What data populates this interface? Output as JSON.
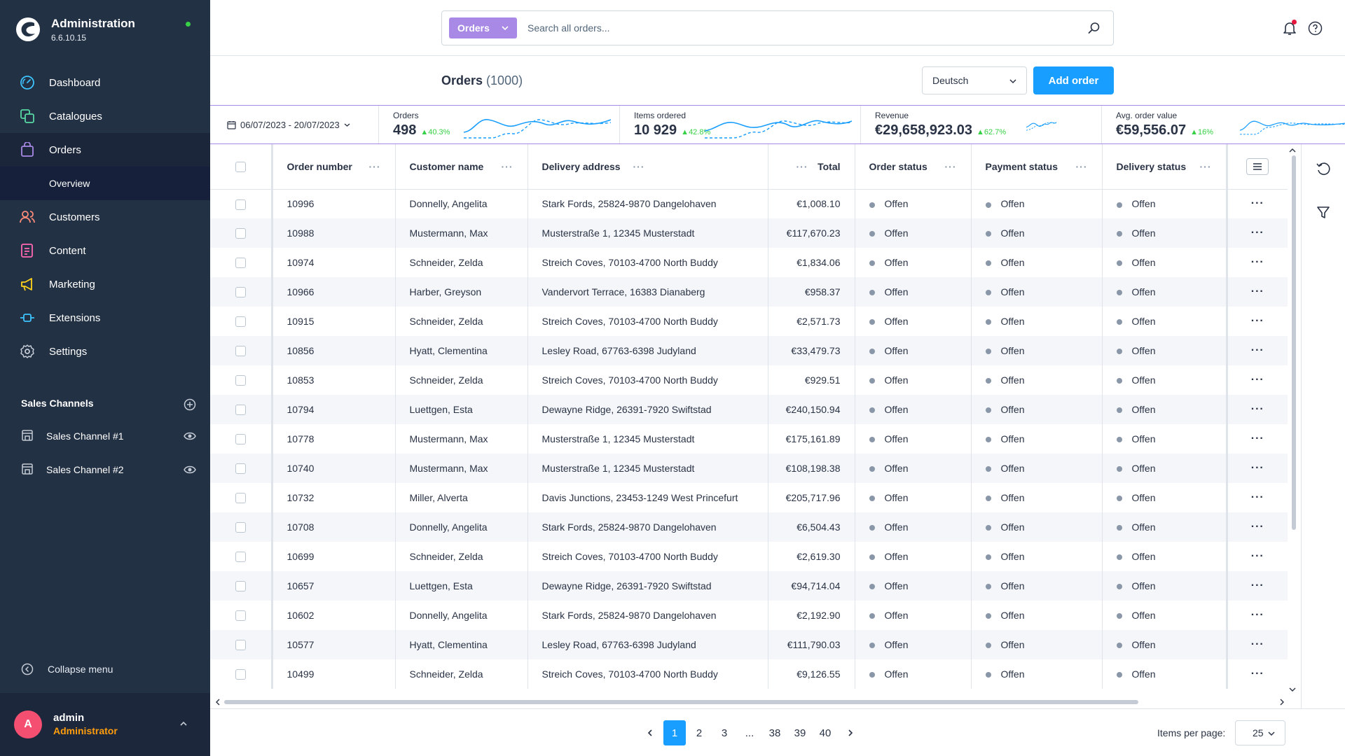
{
  "app": {
    "title": "Administration",
    "version": "6.6.10.15"
  },
  "sidebar": {
    "items": [
      {
        "label": "Dashboard",
        "icon": "dashboard-icon"
      },
      {
        "label": "Catalogues",
        "icon": "catalogue-icon"
      },
      {
        "label": "Orders",
        "icon": "orders-icon"
      },
      {
        "label": "Customers",
        "icon": "customers-icon"
      },
      {
        "label": "Content",
        "icon": "content-icon"
      },
      {
        "label": "Marketing",
        "icon": "marketing-icon"
      },
      {
        "label": "Extensions",
        "icon": "extensions-icon"
      },
      {
        "label": "Settings",
        "icon": "settings-icon"
      }
    ],
    "sub_item": "Overview",
    "sales_channels_title": "Sales Channels",
    "sales_channels": [
      "Sales Channel #1",
      "Sales Channel #2"
    ],
    "collapse_label": "Collapse menu",
    "user": {
      "initial": "A",
      "name": "admin",
      "role": "Administrator"
    }
  },
  "search": {
    "type_label": "Orders",
    "placeholder": "Search all orders..."
  },
  "page": {
    "title": "Orders",
    "count": "(1000)",
    "language": "Deutsch",
    "add_button": "Add order"
  },
  "kpis": {
    "date_range": "06/07/2023 - 20/07/2023",
    "cards": [
      {
        "label": "Orders",
        "value": "498",
        "trend": "40.3%"
      },
      {
        "label": "Items ordered",
        "value": "10 929",
        "trend": "42.8%"
      },
      {
        "label": "Revenue",
        "value": "€29,658,923.03",
        "trend": "62.7%"
      },
      {
        "label": "Avg. order value",
        "value": "€59,556.07",
        "trend": "16%"
      }
    ]
  },
  "table": {
    "columns": {
      "number": "Order number",
      "name": "Customer name",
      "address": "Delivery address",
      "total": "Total",
      "order_status": "Order status",
      "payment_status": "Payment status",
      "delivery_status": "Delivery status"
    },
    "rows": [
      {
        "number": "10996",
        "name": "Donnelly, Angelita",
        "address": "Stark Fords, 25824-9870 Dangelohaven",
        "total": "€1,008.10",
        "order_status": "Offen",
        "payment_status": "Offen",
        "delivery_status": "Offen"
      },
      {
        "number": "10988",
        "name": "Mustermann, Max",
        "address": "Musterstraße 1, 12345 Musterstadt",
        "total": "€117,670.23",
        "order_status": "Offen",
        "payment_status": "Offen",
        "delivery_status": "Offen"
      },
      {
        "number": "10974",
        "name": "Schneider, Zelda",
        "address": "Streich Coves, 70103-4700 North Buddy",
        "total": "€1,834.06",
        "order_status": "Offen",
        "payment_status": "Offen",
        "delivery_status": "Offen"
      },
      {
        "number": "10966",
        "name": "Harber, Greyson",
        "address": "Vandervort Terrace, 16383 Dianaberg",
        "total": "€958.37",
        "order_status": "Offen",
        "payment_status": "Offen",
        "delivery_status": "Offen"
      },
      {
        "number": "10915",
        "name": "Schneider, Zelda",
        "address": "Streich Coves, 70103-4700 North Buddy",
        "total": "€2,571.73",
        "order_status": "Offen",
        "payment_status": "Offen",
        "delivery_status": "Offen"
      },
      {
        "number": "10856",
        "name": "Hyatt, Clementina",
        "address": "Lesley Road, 67763-6398 Judyland",
        "total": "€33,479.73",
        "order_status": "Offen",
        "payment_status": "Offen",
        "delivery_status": "Offen"
      },
      {
        "number": "10853",
        "name": "Schneider, Zelda",
        "address": "Streich Coves, 70103-4700 North Buddy",
        "total": "€929.51",
        "order_status": "Offen",
        "payment_status": "Offen",
        "delivery_status": "Offen"
      },
      {
        "number": "10794",
        "name": "Luettgen, Esta",
        "address": "Dewayne Ridge, 26391-7920 Swiftstad",
        "total": "€240,150.94",
        "order_status": "Offen",
        "payment_status": "Offen",
        "delivery_status": "Offen"
      },
      {
        "number": "10778",
        "name": "Mustermann, Max",
        "address": "Musterstraße 1, 12345 Musterstadt",
        "total": "€175,161.89",
        "order_status": "Offen",
        "payment_status": "Offen",
        "delivery_status": "Offen"
      },
      {
        "number": "10740",
        "name": "Mustermann, Max",
        "address": "Musterstraße 1, 12345 Musterstadt",
        "total": "€108,198.38",
        "order_status": "Offen",
        "payment_status": "Offen",
        "delivery_status": "Offen"
      },
      {
        "number": "10732",
        "name": "Miller, Alverta",
        "address": "Davis Junctions, 23453-1249 West Princefurt",
        "total": "€205,717.96",
        "order_status": "Offen",
        "payment_status": "Offen",
        "delivery_status": "Offen"
      },
      {
        "number": "10708",
        "name": "Donnelly, Angelita",
        "address": "Stark Fords, 25824-9870 Dangelohaven",
        "total": "€6,504.43",
        "order_status": "Offen",
        "payment_status": "Offen",
        "delivery_status": "Offen"
      },
      {
        "number": "10699",
        "name": "Schneider, Zelda",
        "address": "Streich Coves, 70103-4700 North Buddy",
        "total": "€2,619.30",
        "order_status": "Offen",
        "payment_status": "Offen",
        "delivery_status": "Offen"
      },
      {
        "number": "10657",
        "name": "Luettgen, Esta",
        "address": "Dewayne Ridge, 26391-7920 Swiftstad",
        "total": "€94,714.04",
        "order_status": "Offen",
        "payment_status": "Offen",
        "delivery_status": "Offen"
      },
      {
        "number": "10602",
        "name": "Donnelly, Angelita",
        "address": "Stark Fords, 25824-9870 Dangelohaven",
        "total": "€2,192.90",
        "order_status": "Offen",
        "payment_status": "Offen",
        "delivery_status": "Offen"
      },
      {
        "number": "10577",
        "name": "Hyatt, Clementina",
        "address": "Lesley Road, 67763-6398 Judyland",
        "total": "€111,790.03",
        "order_status": "Offen",
        "payment_status": "Offen",
        "delivery_status": "Offen"
      },
      {
        "number": "10499",
        "name": "Schneider, Zelda",
        "address": "Streich Coves, 70103-4700 North Buddy",
        "total": "€9,126.55",
        "order_status": "Offen",
        "payment_status": "Offen",
        "delivery_status": "Offen"
      }
    ]
  },
  "pagination": {
    "pages": [
      "1",
      "2",
      "3",
      "...",
      "38",
      "39",
      "40"
    ],
    "current": "1",
    "items_per_page_label": "Items per page:",
    "items_per_page": "25"
  },
  "colors": {
    "sidebar_bg": "#233145",
    "primary": "#189eff",
    "accent_purple": "#a989e6",
    "trend_green": "#37d046",
    "avatar": "#f44f70",
    "role_orange": "#ff9d0d"
  }
}
